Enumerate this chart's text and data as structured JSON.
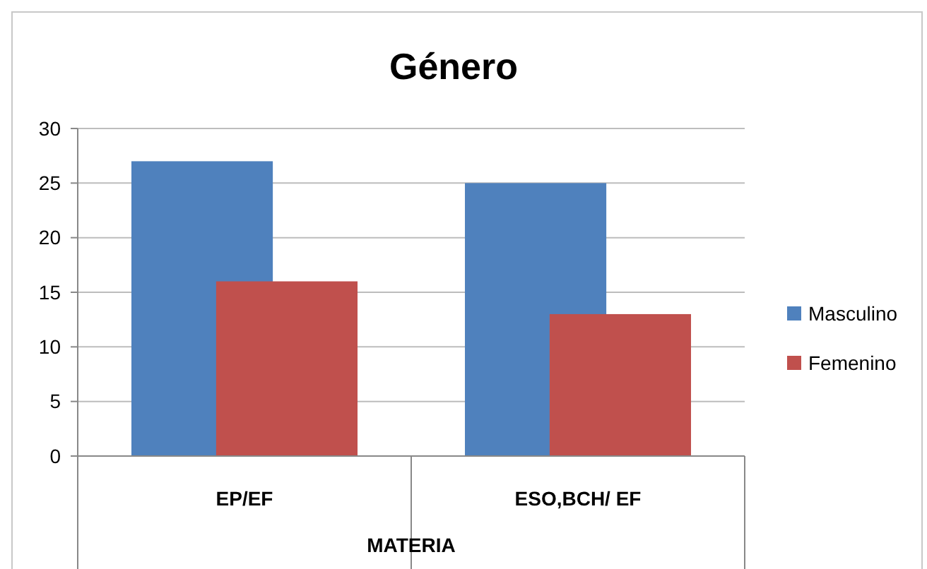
{
  "chart_data": {
    "type": "bar",
    "title": "Género",
    "xlabel": "MATERIA",
    "categories": [
      "EP/EF",
      "ESO,BCH/ EF"
    ],
    "series": [
      {
        "name": "Masculino",
        "color": "#4f81bd",
        "values": [
          27,
          25
        ]
      },
      {
        "name": "Femenino",
        "color": "#c0504d",
        "values": [
          16,
          13
        ]
      }
    ],
    "ylim": [
      0,
      30
    ],
    "yticks": [
      0,
      5,
      10,
      15,
      20,
      25,
      30
    ],
    "grid": "y",
    "legend": "right"
  }
}
